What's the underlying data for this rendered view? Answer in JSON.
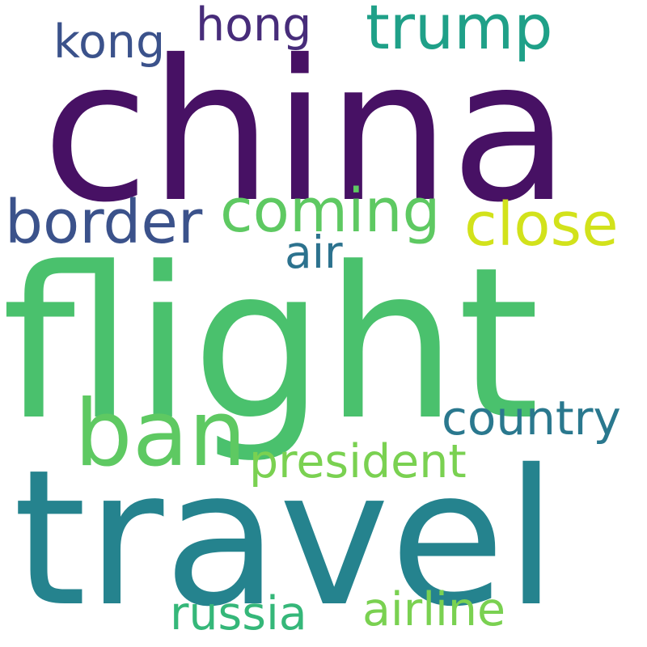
{
  "words": [
    {
      "text": "china",
      "color": "#471164"
    },
    {
      "text": "flight",
      "color": "#4ac16d"
    },
    {
      "text": "travel",
      "color": "#25838e"
    },
    {
      "text": "trump",
      "color": "#1fa088"
    },
    {
      "text": "hong",
      "color": "#472c7a"
    },
    {
      "text": "kong",
      "color": "#3b528b"
    },
    {
      "text": "border",
      "color": "#3b528b"
    },
    {
      "text": "coming",
      "color": "#5ec962"
    },
    {
      "text": "close",
      "color": "#d2e21b"
    },
    {
      "text": "air",
      "color": "#2c728e"
    },
    {
      "text": "ban",
      "color": "#5ec962"
    },
    {
      "text": "country",
      "color": "#2a788e"
    },
    {
      "text": "president",
      "color": "#7ad151"
    },
    {
      "text": "russia",
      "color": "#35b779"
    },
    {
      "text": "airline",
      "color": "#7ad151"
    }
  ]
}
